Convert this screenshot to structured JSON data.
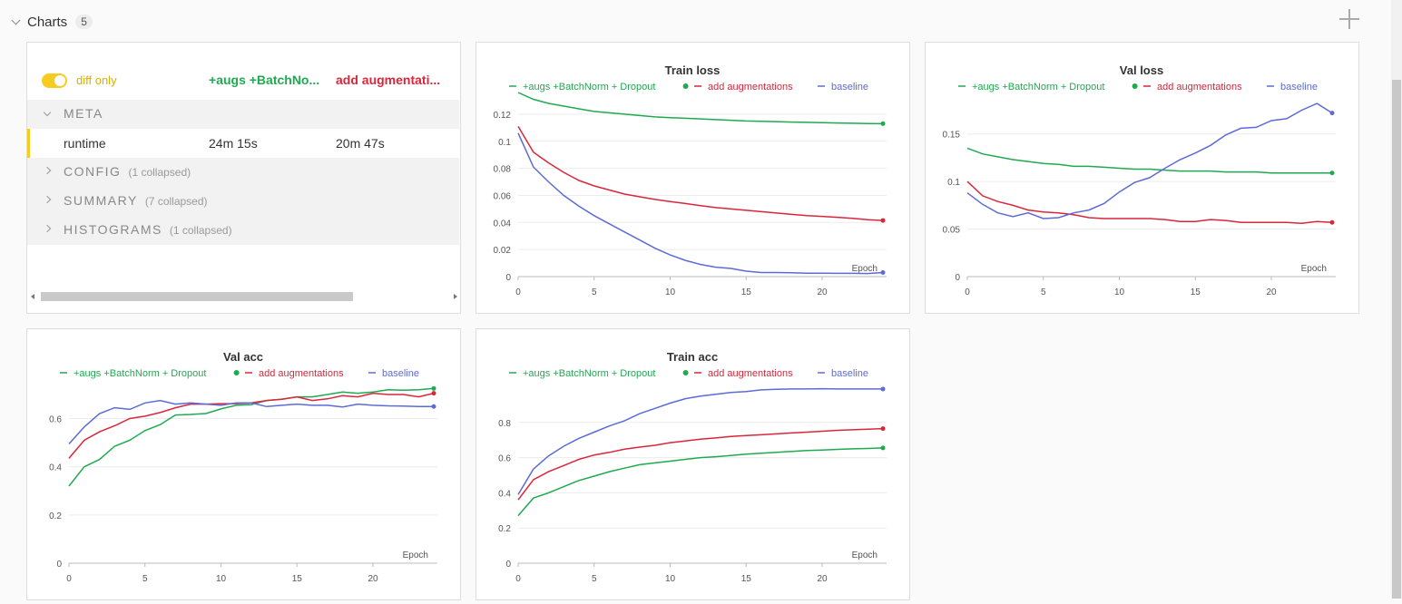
{
  "section": {
    "title": "Charts",
    "count": "5"
  },
  "comparer": {
    "toggle_label": "diff only",
    "run_columns": [
      {
        "label": "+augs +BatchNo...",
        "color": "#1faa50"
      },
      {
        "label": "add augmentati...",
        "color": "#d9263b"
      }
    ],
    "groups": [
      {
        "label": "META",
        "note": "",
        "open": true
      },
      {
        "label": "CONFIG",
        "note": "(1 collapsed)",
        "open": false
      },
      {
        "label": "SUMMARY",
        "note": "(7 collapsed)",
        "open": false
      },
      {
        "label": "HISTOGRAMS",
        "note": "(1 collapsed)",
        "open": false
      }
    ],
    "meta_rows": [
      {
        "key": "runtime",
        "values": [
          "24m 15s",
          "20m 47s"
        ]
      }
    ]
  },
  "series_colors": {
    "+augs +BatchNorm + Dropout": "#1faa50",
    "add augmentations": "#d9263b",
    "baseline": "#5c6bd6"
  },
  "chart_data": [
    {
      "type": "line",
      "title": "Train loss",
      "xlabel": "Epoch",
      "ylabel": "",
      "xlim": [
        0,
        24
      ],
      "ylim": [
        0,
        0.13
      ],
      "xticks": [
        0,
        5,
        10,
        15,
        20
      ],
      "yticks": [
        0,
        0.02,
        0.04,
        0.06,
        0.08,
        0.1,
        0.12
      ],
      "ytick_labels": [
        "0",
        "0.02",
        "0.04",
        "0.06",
        "0.08",
        "0.1",
        "0.12"
      ],
      "grid": true,
      "legend": "top",
      "x": [
        0,
        1,
        2,
        3,
        4,
        5,
        6,
        7,
        8,
        9,
        10,
        11,
        12,
        13,
        14,
        15,
        16,
        17,
        18,
        19,
        20,
        21,
        22,
        23,
        24
      ],
      "series": [
        {
          "name": "+augs +BatchNorm + Dropout",
          "values": [
            0.136,
            0.131,
            0.128,
            0.126,
            0.124,
            0.122,
            0.121,
            0.12,
            0.119,
            0.118,
            0.1175,
            0.117,
            0.1165,
            0.116,
            0.1155,
            0.115,
            0.1148,
            0.1145,
            0.1142,
            0.114,
            0.1138,
            0.1135,
            0.1133,
            0.1131,
            0.113
          ]
        },
        {
          "name": "add augmentations",
          "values": [
            0.111,
            0.092,
            0.084,
            0.077,
            0.071,
            0.067,
            0.064,
            0.061,
            0.059,
            0.057,
            0.0555,
            0.054,
            0.0525,
            0.051,
            0.05,
            0.049,
            0.048,
            0.047,
            0.046,
            0.045,
            0.0445,
            0.0438,
            0.043,
            0.042,
            0.0415
          ]
        },
        {
          "name": "baseline",
          "values": [
            0.106,
            0.081,
            0.07,
            0.06,
            0.052,
            0.045,
            0.039,
            0.033,
            0.027,
            0.021,
            0.016,
            0.012,
            0.009,
            0.007,
            0.006,
            0.004,
            0.003,
            0.003,
            0.0028,
            0.0025,
            0.0025,
            0.0024,
            0.0024,
            0.0023,
            0.003
          ]
        }
      ]
    },
    {
      "type": "line",
      "title": "Val loss",
      "xlabel": "Epoch",
      "ylabel": "",
      "xlim": [
        0,
        24
      ],
      "ylim": [
        0,
        0.185
      ],
      "xticks": [
        0,
        5,
        10,
        15,
        20
      ],
      "yticks": [
        0,
        0.05,
        0.1,
        0.15
      ],
      "ytick_labels": [
        "0",
        "0.05",
        "0.1",
        "0.15"
      ],
      "grid": true,
      "legend": "top",
      "x": [
        0,
        1,
        2,
        3,
        4,
        5,
        6,
        7,
        8,
        9,
        10,
        11,
        12,
        13,
        14,
        15,
        16,
        17,
        18,
        19,
        20,
        21,
        22,
        23,
        24
      ],
      "series": [
        {
          "name": "+augs +BatchNorm + Dropout",
          "values": [
            0.135,
            0.129,
            0.126,
            0.123,
            0.121,
            0.119,
            0.118,
            0.116,
            0.116,
            0.115,
            0.114,
            0.113,
            0.113,
            0.112,
            0.111,
            0.111,
            0.111,
            0.11,
            0.11,
            0.11,
            0.109,
            0.109,
            0.109,
            0.109,
            0.109
          ]
        },
        {
          "name": "add augmentations",
          "values": [
            0.1,
            0.085,
            0.079,
            0.075,
            0.07,
            0.068,
            0.067,
            0.065,
            0.062,
            0.061,
            0.061,
            0.061,
            0.061,
            0.06,
            0.058,
            0.058,
            0.06,
            0.059,
            0.057,
            0.057,
            0.057,
            0.057,
            0.056,
            0.058,
            0.057
          ]
        },
        {
          "name": "baseline",
          "values": [
            0.088,
            0.076,
            0.067,
            0.063,
            0.067,
            0.061,
            0.062,
            0.067,
            0.07,
            0.077,
            0.089,
            0.099,
            0.104,
            0.114,
            0.123,
            0.13,
            0.138,
            0.149,
            0.156,
            0.157,
            0.164,
            0.166,
            0.175,
            0.182,
            0.172
          ]
        }
      ]
    },
    {
      "type": "line",
      "title": "Val acc",
      "xlabel": "Epoch",
      "ylabel": "",
      "xlim": [
        0,
        24
      ],
      "ylim": [
        0,
        0.73
      ],
      "xticks": [
        0,
        5,
        10,
        15,
        20
      ],
      "yticks": [
        0,
        0.2,
        0.4,
        0.6
      ],
      "ytick_labels": [
        "0",
        "0.2",
        "0.4",
        "0.6"
      ],
      "grid": true,
      "legend": "top",
      "x": [
        0,
        1,
        2,
        3,
        4,
        5,
        6,
        7,
        8,
        9,
        10,
        11,
        12,
        13,
        14,
        15,
        16,
        17,
        18,
        19,
        20,
        21,
        22,
        23,
        24
      ],
      "series": [
        {
          "name": "+augs +BatchNorm + Dropout",
          "values": [
            0.32,
            0.4,
            0.43,
            0.485,
            0.51,
            0.55,
            0.575,
            0.615,
            0.617,
            0.621,
            0.64,
            0.655,
            0.658,
            0.675,
            0.68,
            0.69,
            0.69,
            0.7,
            0.71,
            0.705,
            0.71,
            0.72,
            0.718,
            0.72,
            0.725
          ]
        },
        {
          "name": "add augmentations",
          "values": [
            0.435,
            0.51,
            0.545,
            0.57,
            0.6,
            0.61,
            0.625,
            0.645,
            0.66,
            0.66,
            0.662,
            0.662,
            0.665,
            0.675,
            0.68,
            0.69,
            0.675,
            0.682,
            0.695,
            0.69,
            0.705,
            0.7,
            0.7,
            0.69,
            0.705
          ]
        },
        {
          "name": "baseline",
          "values": [
            0.495,
            0.565,
            0.62,
            0.645,
            0.638,
            0.665,
            0.675,
            0.66,
            0.665,
            0.66,
            0.655,
            0.665,
            0.665,
            0.65,
            0.655,
            0.66,
            0.655,
            0.655,
            0.648,
            0.66,
            0.655,
            0.653,
            0.652,
            0.65,
            0.65
          ]
        }
      ]
    },
    {
      "type": "line",
      "title": "Train acc",
      "xlabel": "Epoch",
      "ylabel": "",
      "xlim": [
        0,
        24
      ],
      "ylim": [
        0,
        1.0
      ],
      "xticks": [
        0,
        5,
        10,
        15,
        20
      ],
      "yticks": [
        0,
        0.2,
        0.4,
        0.6,
        0.8
      ],
      "ytick_labels": [
        "0",
        "0.2",
        "0.4",
        "0.6",
        "0.8"
      ],
      "grid": true,
      "legend": "top",
      "x": [
        0,
        1,
        2,
        3,
        4,
        5,
        6,
        7,
        8,
        9,
        10,
        11,
        12,
        13,
        14,
        15,
        16,
        17,
        18,
        19,
        20,
        21,
        22,
        23,
        24
      ],
      "series": [
        {
          "name": "+augs +BatchNorm + Dropout",
          "values": [
            0.27,
            0.37,
            0.4,
            0.435,
            0.47,
            0.495,
            0.52,
            0.54,
            0.56,
            0.57,
            0.58,
            0.59,
            0.6,
            0.605,
            0.612,
            0.62,
            0.625,
            0.63,
            0.635,
            0.64,
            0.643,
            0.647,
            0.65,
            0.652,
            0.655
          ]
        },
        {
          "name": "add augmentations",
          "values": [
            0.36,
            0.475,
            0.52,
            0.555,
            0.59,
            0.615,
            0.63,
            0.648,
            0.66,
            0.67,
            0.685,
            0.695,
            0.705,
            0.712,
            0.72,
            0.725,
            0.73,
            0.735,
            0.74,
            0.745,
            0.75,
            0.755,
            0.758,
            0.762,
            0.765
          ]
        },
        {
          "name": "baseline",
          "values": [
            0.39,
            0.535,
            0.61,
            0.665,
            0.71,
            0.745,
            0.78,
            0.81,
            0.85,
            0.88,
            0.91,
            0.935,
            0.95,
            0.96,
            0.97,
            0.975,
            0.985,
            0.988,
            0.99,
            0.99,
            0.992,
            0.99,
            0.99,
            0.99,
            0.99
          ]
        }
      ]
    }
  ]
}
